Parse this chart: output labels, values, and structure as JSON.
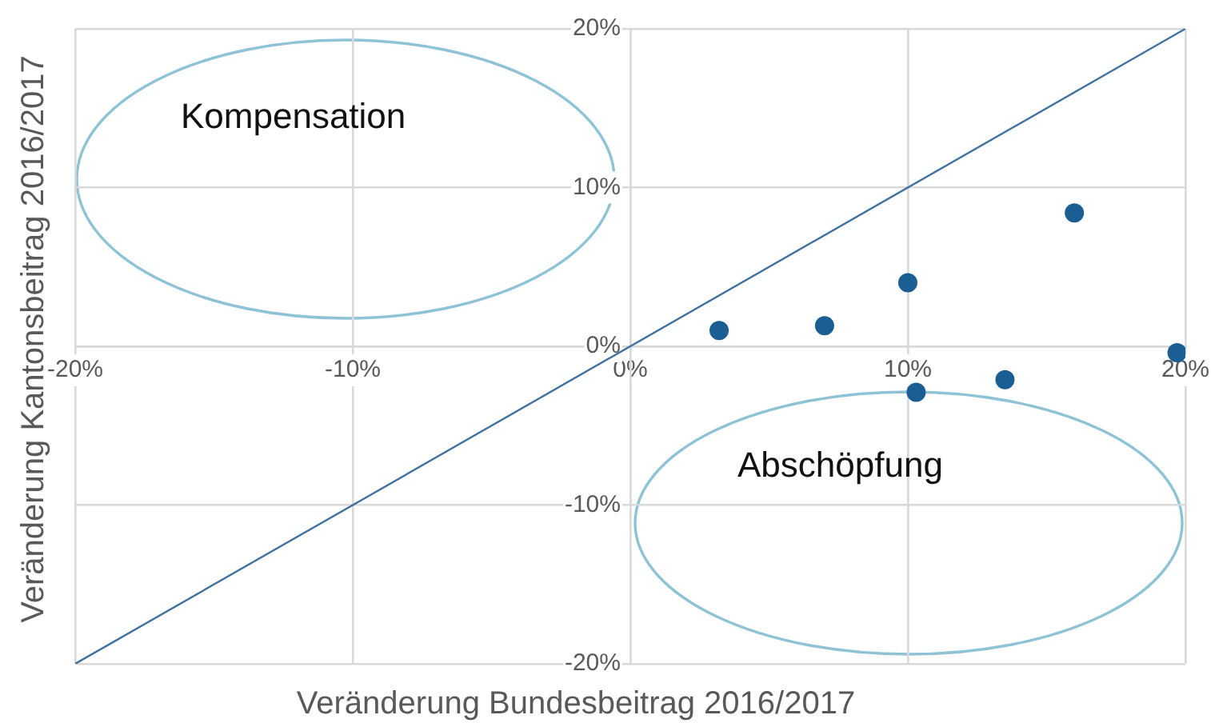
{
  "chart_data": {
    "type": "scatter",
    "xlabel": "Veränderung Bundesbeitrag 2016/2017",
    "ylabel": "Veränderung Kantonsbeitrag 2016/2017",
    "annotations": [
      "Kompensation",
      "Abschöpfung"
    ],
    "xlim": [
      -20,
      20
    ],
    "ylim": [
      -20,
      20
    ],
    "xticks": [
      {
        "value": -20,
        "label": "-20%"
      },
      {
        "value": -10,
        "label": "-10%"
      },
      {
        "value": 0,
        "label": "0%"
      },
      {
        "value": 10,
        "label": "10%"
      },
      {
        "value": 20,
        "label": "20%"
      }
    ],
    "yticks": [
      {
        "value": -20,
        "label": "-20%"
      },
      {
        "value": -10,
        "label": "-10%"
      },
      {
        "value": 0,
        "label": "0%"
      },
      {
        "value": 10,
        "label": "10%"
      },
      {
        "value": 20,
        "label": "20%"
      }
    ],
    "grid": true,
    "marker": "circle",
    "series": [
      {
        "type": "line",
        "x": [
          -20,
          20
        ],
        "values": [
          -20,
          20
        ],
        "color": "#3f719f",
        "marker": "none"
      },
      {
        "type": "scatter",
        "x": [
          3.2,
          7.0,
          10.0,
          16.0,
          19.7,
          13.5,
          10.3
        ],
        "values": [
          1.0,
          1.3,
          4.0,
          8.4,
          -0.4,
          -2.1,
          -2.9
        ],
        "color": "#1b5e94"
      }
    ]
  }
}
